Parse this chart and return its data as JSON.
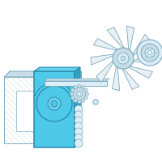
{
  "bg_color": "#ffffff",
  "shroud_fill": "#4ec9e8",
  "shroud_edge": "#2a8aaa",
  "part_edge": "#7aaabc",
  "part_fill": "#ddeef8",
  "part_fill2": "#c8dde8",
  "fan_fill": "#e8f0f5",
  "rad_fill": "#e0eef5",
  "rad_hatch": "#9abccc"
}
